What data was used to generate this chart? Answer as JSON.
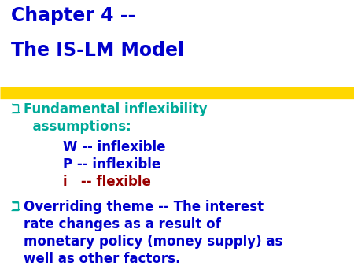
{
  "background_color": "#ffffff",
  "title_line1": "Chapter 4 --",
  "title_line2": "The IS-LM Model",
  "title_color": "#0000cc",
  "title_fontsize": 17,
  "highlight_color": "#FFD700",
  "bullet_color": "#00aa99",
  "bullet_char": "ℶ",
  "bullet1_line1": "Fundamental inflexibility",
  "bullet1_line2": "  assumptions:",
  "bullet_fontsize": 12,
  "sub_items": [
    {
      "text": "W -- inflexible",
      "color": "#0000cc"
    },
    {
      "text": "P -- inflexible",
      "color": "#0000cc"
    },
    {
      "text": "i   -- flexible",
      "color": "#990000"
    }
  ],
  "sub_fontsize": 12,
  "bullet2_lines": [
    "Overriding theme -- The interest",
    "rate changes as a result of",
    "monetary policy (money supply) as",
    "well as other factors."
  ],
  "bullet2_color": "#0000cc",
  "bullet2_fontsize": 12
}
